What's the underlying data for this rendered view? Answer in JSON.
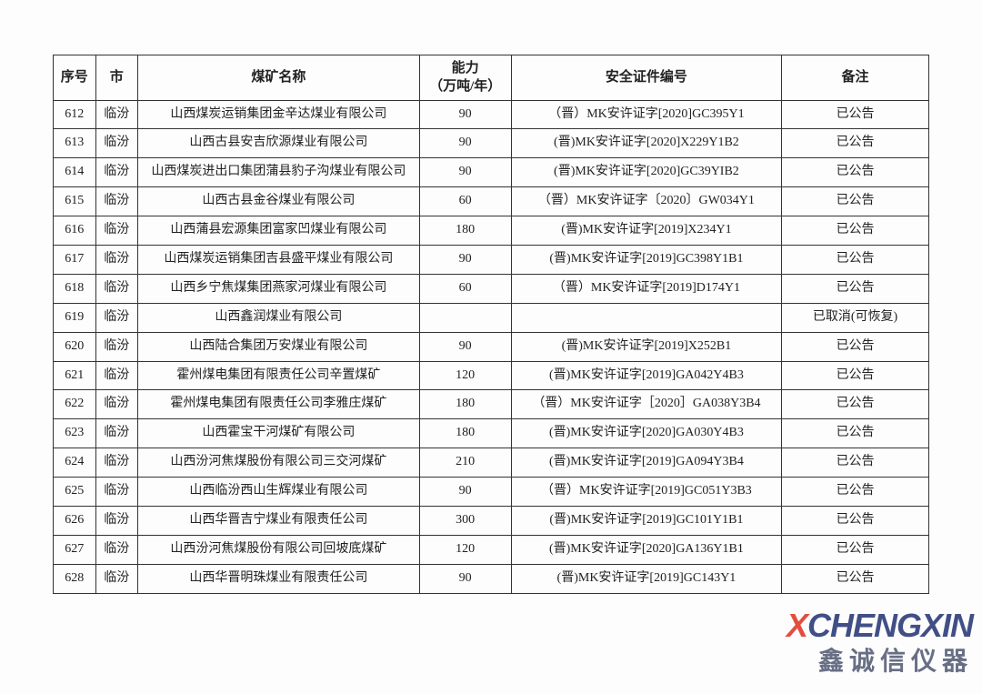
{
  "table": {
    "headers": {
      "seq": "序号",
      "city": "市",
      "name": "煤矿名称",
      "capacity_l1": "能力",
      "capacity_l2": "（万吨/年）",
      "cert": "安全证件编号",
      "note": "备注"
    },
    "rows": [
      {
        "seq": "612",
        "city": "临汾",
        "name": "山西煤炭运销集团金辛达煤业有限公司",
        "cap": "90",
        "cert": "（晋）MK安许证字[2020]GC395Y1",
        "note": "已公告"
      },
      {
        "seq": "613",
        "city": "临汾",
        "name": "山西古县安吉欣源煤业有限公司",
        "cap": "90",
        "cert": "(晋)MK安许证字[2020]X229Y1B2",
        "note": "已公告"
      },
      {
        "seq": "614",
        "city": "临汾",
        "name": "山西煤炭进出口集团蒲县豹子沟煤业有限公司",
        "cap": "90",
        "cert": "(晋)MK安许证字[2020]GC39YIB2",
        "note": "已公告"
      },
      {
        "seq": "615",
        "city": "临汾",
        "name": "山西古县金谷煤业有限公司",
        "cap": "60",
        "cert": "（晋）MK安许证字〔2020〕GW034Y1",
        "note": "已公告"
      },
      {
        "seq": "616",
        "city": "临汾",
        "name": "山西蒲县宏源集团富家凹煤业有限公司",
        "cap": "180",
        "cert": "(晋)MK安许证字[2019]X234Y1",
        "note": "已公告"
      },
      {
        "seq": "617",
        "city": "临汾",
        "name": "山西煤炭运销集团吉县盛平煤业有限公司",
        "cap": "90",
        "cert": "(晋)MK安许证字[2019]GC398Y1B1",
        "note": "已公告"
      },
      {
        "seq": "618",
        "city": "临汾",
        "name": "山西乡宁焦煤集团燕家河煤业有限公司",
        "cap": "60",
        "cert": "（晋）MK安许证字[2019]D174Y1",
        "note": "已公告"
      },
      {
        "seq": "619",
        "city": "临汾",
        "name": "山西鑫润煤业有限公司",
        "cap": "",
        "cert": "",
        "note": "已取消(可恢复)"
      },
      {
        "seq": "620",
        "city": "临汾",
        "name": "山西陆合集团万安煤业有限公司",
        "cap": "90",
        "cert": "(晋)MK安许证字[2019]X252B1",
        "note": "已公告"
      },
      {
        "seq": "621",
        "city": "临汾",
        "name": "霍州煤电集团有限责任公司辛置煤矿",
        "cap": "120",
        "cert": "(晋)MK安许证字[2019]GA042Y4B3",
        "note": "已公告"
      },
      {
        "seq": "622",
        "city": "临汾",
        "name": "霍州煤电集团有限责任公司李雅庄煤矿",
        "cap": "180",
        "cert": "（晋）MK安许证字［2020］GA038Y3B4",
        "note": "已公告"
      },
      {
        "seq": "623",
        "city": "临汾",
        "name": "山西霍宝干河煤矿有限公司",
        "cap": "180",
        "cert": "(晋)MK安许证字[2020]GA030Y4B3",
        "note": "已公告"
      },
      {
        "seq": "624",
        "city": "临汾",
        "name": "山西汾河焦煤股份有限公司三交河煤矿",
        "cap": "210",
        "cert": "(晋)MK安许证字[2019]GA094Y3B4",
        "note": "已公告"
      },
      {
        "seq": "625",
        "city": "临汾",
        "name": "山西临汾西山生辉煤业有限公司",
        "cap": "90",
        "cert": "（晋）MK安许证字[2019]GC051Y3B3",
        "note": "已公告"
      },
      {
        "seq": "626",
        "city": "临汾",
        "name": "山西华晋吉宁煤业有限责任公司",
        "cap": "300",
        "cert": "(晋)MK安许证字[2019]GC101Y1B1",
        "note": "已公告"
      },
      {
        "seq": "627",
        "city": "临汾",
        "name": "山西汾河焦煤股份有限公司回坡底煤矿",
        "cap": "120",
        "cert": "(晋)MK安许证字[2020]GA136Y1B1",
        "note": "已公告"
      },
      {
        "seq": "628",
        "city": "临汾",
        "name": "山西华晋明珠煤业有限责任公司",
        "cap": "90",
        "cert": "(晋)MK安许证字[2019]GC143Y1",
        "note": "已公告"
      }
    ]
  },
  "watermark": {
    "brand_prefix": "X",
    "brand_mid": "CHENG",
    "brand_x2": "X",
    "brand_suffix": "IN",
    "cn": "鑫诚信仪器"
  },
  "colors": {
    "border": "#333333",
    "text": "#222222",
    "bg": "#fdfdfd",
    "wm_red": "#e23a2a",
    "wm_blue": "#2d3d7a",
    "wm_gray": "#586079"
  }
}
